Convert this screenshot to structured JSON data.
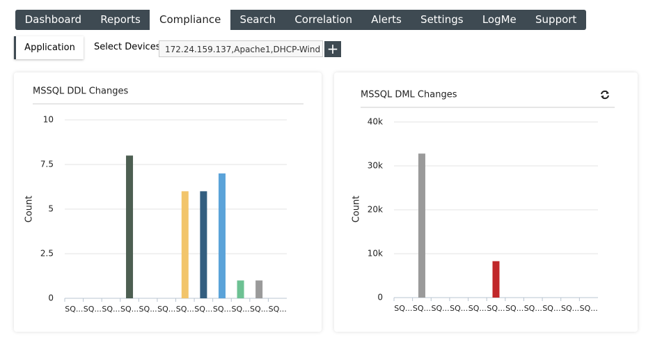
{
  "nav": {
    "tabs": [
      "Dashboard",
      "Reports",
      "Compliance",
      "Search",
      "Correlation",
      "Alerts",
      "Settings",
      "LogMe",
      "Support"
    ]
  },
  "toolbar": {
    "tab": "Application",
    "select_label": "Select Devices",
    "devices": "172.24.159.137,Apache1,DHCP-Wind"
  },
  "chart_data": [
    {
      "type": "bar",
      "title": "MSSQL DDL Changes",
      "y_label": "Count",
      "categories": [
        "SQ...",
        "SQ...",
        "SQ...",
        "SQ...",
        "SQ...",
        "SQ...",
        "SQ...",
        "SQ...",
        "SQ...",
        "SQ...",
        "SQ...",
        "SQ..."
      ],
      "values": [
        0,
        0,
        0,
        8,
        0,
        0,
        6,
        6,
        7,
        1,
        1,
        0
      ],
      "colors": [
        null,
        null,
        null,
        "#4d5f52",
        null,
        null,
        "#f2c56b",
        "#335e80",
        "#5ba3d9",
        "#6dc193",
        "#9a9a9a",
        null
      ],
      "ylim": [
        0,
        10
      ],
      "yticks": [
        0,
        2.5,
        5,
        7.5,
        10
      ],
      "grid": true
    },
    {
      "type": "bar",
      "title": "MSSQL DML Changes",
      "y_label": "Count",
      "categories": [
        "SQ...",
        "SQ...",
        "SQ...",
        "SQ...",
        "SQ...",
        "SQ...",
        "SQ...",
        "SQ...",
        "SQ...",
        "SQ...",
        "SQ..."
      ],
      "values": [
        0,
        32800,
        0,
        0,
        0,
        8300,
        0,
        0,
        0,
        0,
        0
      ],
      "colors": [
        null,
        "#9a9a9a",
        null,
        null,
        null,
        "#c0282a",
        null,
        null,
        null,
        null,
        null
      ],
      "ylim": [
        0,
        40000
      ],
      "yticks": [
        0,
        {
          "value": 10000,
          "label": "10k"
        },
        {
          "value": 20000,
          "label": "20k"
        },
        {
          "value": 30000,
          "label": "30k"
        },
        {
          "value": 40000,
          "label": "40k"
        }
      ],
      "grid": true
    }
  ]
}
